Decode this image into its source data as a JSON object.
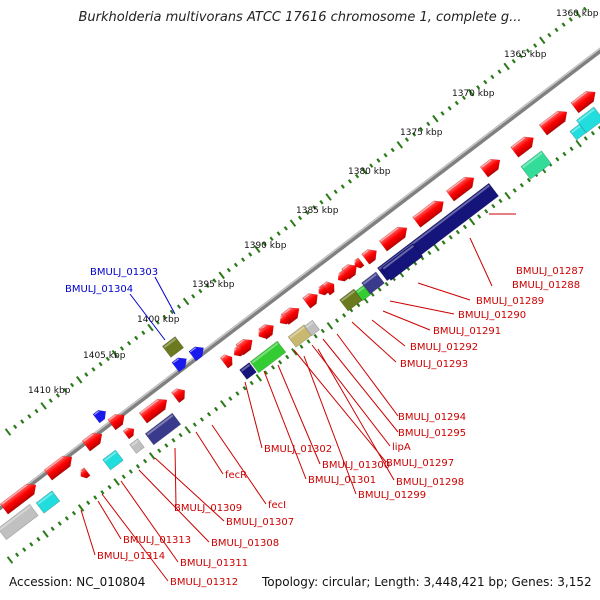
{
  "title": "Burkholderia multivorans ATCC 17616 chromosome 1, complete g...",
  "footer": {
    "accession": "Accession: NC_010804",
    "topology": "Topology: circular; Length: 3,448,421 bp; Genes: 3,152"
  },
  "colors": {
    "forward_gene": "#ff0000",
    "reverse_gene": "#ff0000",
    "tick": "#2a7a1a",
    "backbone": "#808080",
    "label_red": "#cc0000",
    "label_blue": "#0000cc",
    "dark_blue_block": "#14147a",
    "purple_block": "#3a3a8c",
    "olive_block": "#6b7a1e",
    "green_block": "#33cc33",
    "mint_block": "#33dd99",
    "cyan_block": "#22dddd",
    "tan_block": "#c8b870",
    "grey_block": "#c0c0c0",
    "blue_marker": "#1a1aee"
  },
  "kbp_labels": [
    "1360 kbp",
    "1365 kbp",
    "1370 kbp",
    "1375 kbp",
    "1380 kbp",
    "1385 kbp",
    "1390 kbp",
    "1395 kbp",
    "1400 kbp",
    "1405 kbp",
    "1410 kbp"
  ],
  "gene_labels_red": [
    "BMULJ_01287",
    "BMULJ_01288",
    "BMULJ_01289",
    "BMULJ_01290",
    "BMULJ_01291",
    "BMULJ_01292",
    "BMULJ_01293",
    "BMULJ_01294",
    "BMULJ_01295",
    "lipA",
    "BMULJ_01297",
    "BMULJ_01298",
    "BMULJ_01299",
    "BMULJ_01300",
    "BMULJ_01301",
    "BMULJ_01302",
    "fecI",
    "fecR",
    "BMULJ_01307",
    "BMULJ_01308",
    "BMULJ_01309",
    "BMULJ_01311",
    "BMULJ_01312",
    "BMULJ_01313",
    "BMULJ_01314"
  ],
  "gene_labels_blue": [
    "BMULJ_01303",
    "BMULJ_01304"
  ]
}
